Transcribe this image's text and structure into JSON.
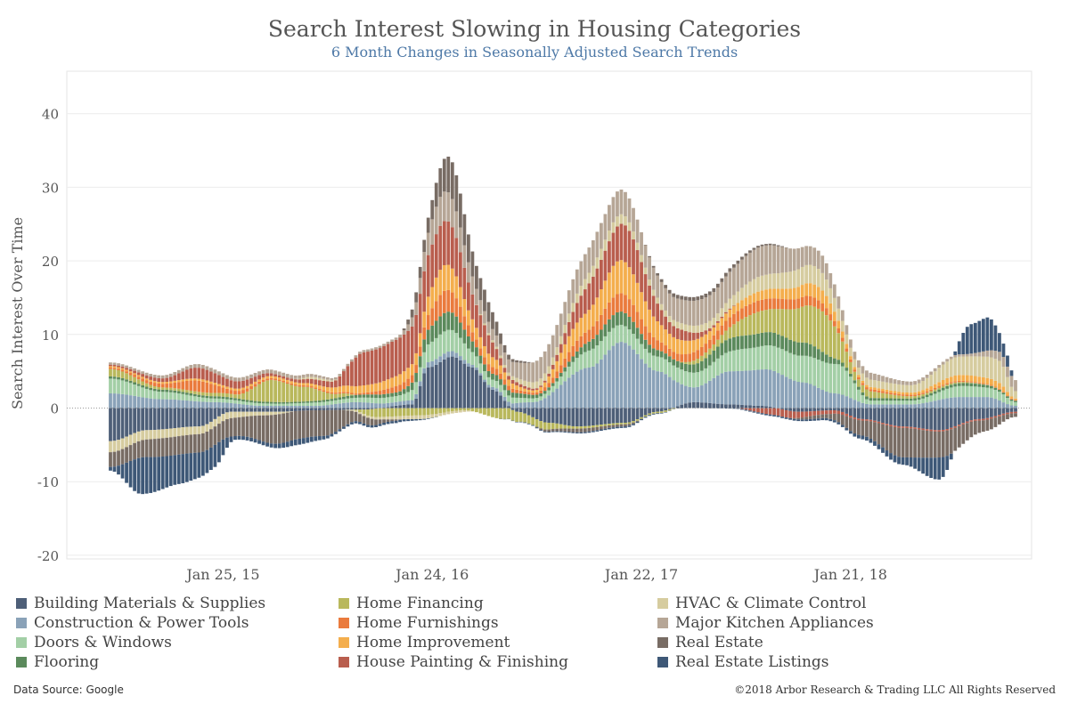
{
  "header": {
    "title": "Search Interest Slowing in Housing Categories",
    "subtitle": "6 Month Changes in Seasonally Adjusted Search Trends"
  },
  "footer": {
    "source": "Data Source: Google",
    "copyright": "©2018 Arbor Research & Trading LLC  All Rights Reserved"
  },
  "chart_data": {
    "type": "bar",
    "stacked": true,
    "title": "Search Interest Slowing in Housing Categories",
    "subtitle": "6 Month Changes in Seasonally Adjusted Search Trends",
    "ylabel": "Search Interest Over Time",
    "xlabel": "",
    "ylim": [
      -20,
      45
    ],
    "yticks": [
      -20,
      -10,
      0,
      10,
      20,
      30,
      40
    ],
    "grid": true,
    "legend_position": "bottom",
    "x_tick_labels": [
      "Jan 25, 15",
      "Jan 24, 16",
      "Jan 22, 17",
      "Jan 21, 18"
    ],
    "x_start": "2014-07-13",
    "x_end": "2018-11-04",
    "frequency": "weekly",
    "series": [
      {
        "name": "Building Materials & Supplies",
        "color": "#4e5f78",
        "points": [
          [
            "2014-07-13",
            -4.5
          ],
          [
            "2014-09-14",
            -3.0
          ],
          [
            "2014-12-14",
            -2.5
          ],
          [
            "2015-02-08",
            -0.5
          ],
          [
            "2015-03-22",
            -0.5
          ],
          [
            "2015-05-03",
            -0.5
          ],
          [
            "2015-07-05",
            -0.3
          ],
          [
            "2015-09-27",
            -0.2
          ],
          [
            "2015-12-20",
            0.5
          ],
          [
            "2016-01-17",
            5.5
          ],
          [
            "2016-02-28",
            7.0
          ],
          [
            "2016-04-03",
            5.5
          ],
          [
            "2016-05-08",
            2.5
          ],
          [
            "2016-06-19",
            -0.5
          ],
          [
            "2016-08-14",
            -2.0
          ],
          [
            "2016-10-02",
            -2.5
          ],
          [
            "2016-12-25",
            -2.0
          ],
          [
            "2017-02-19",
            -0.5
          ],
          [
            "2017-04-23",
            0.8
          ],
          [
            "2017-06-25",
            0.5
          ],
          [
            "2017-08-20",
            0.3
          ],
          [
            "2017-10-22",
            -0.5
          ],
          [
            "2017-12-24",
            -0.3
          ],
          [
            "2018-02-11",
            -1.5
          ],
          [
            "2018-04-22",
            -2.5
          ],
          [
            "2018-06-24",
            -3.0
          ],
          [
            "2018-09-02",
            -1.5
          ],
          [
            "2018-11-04",
            -0.5
          ]
        ]
      },
      {
        "name": "Construction & Power Tools",
        "color": "#8aa2b8",
        "points": [
          [
            "2014-07-13",
            2.0
          ],
          [
            "2014-10-12",
            1.2
          ],
          [
            "2015-01-11",
            0.8
          ],
          [
            "2015-04-05",
            0.3
          ],
          [
            "2015-07-05",
            0.3
          ],
          [
            "2015-09-13",
            0.8
          ],
          [
            "2015-11-22",
            0.5
          ],
          [
            "2016-02-14",
            0.8
          ],
          [
            "2016-04-17",
            0.3
          ],
          [
            "2016-07-17",
            0.8
          ],
          [
            "2016-10-23",
            5.5
          ],
          [
            "2016-12-18",
            9.0
          ],
          [
            "2017-02-19",
            5.0
          ],
          [
            "2017-04-23",
            2.0
          ],
          [
            "2017-06-25",
            4.5
          ],
          [
            "2017-09-03",
            5.0
          ],
          [
            "2017-10-29",
            3.5
          ],
          [
            "2017-12-24",
            2.0
          ],
          [
            "2018-02-25",
            0.5
          ],
          [
            "2018-05-06",
            0.5
          ],
          [
            "2018-07-29",
            1.5
          ],
          [
            "2018-09-16",
            1.5
          ],
          [
            "2018-11-04",
            0.3
          ]
        ]
      },
      {
        "name": "Doors & Windows",
        "color": "#a3cfa6",
        "points": [
          [
            "2014-07-13",
            2.0
          ],
          [
            "2014-10-12",
            1.0
          ],
          [
            "2015-01-11",
            0.5
          ],
          [
            "2015-05-03",
            0.3
          ],
          [
            "2015-08-02",
            0.5
          ],
          [
            "2015-11-22",
            0.8
          ],
          [
            "2016-02-14",
            3.0
          ],
          [
            "2016-05-08",
            1.0
          ],
          [
            "2016-07-24",
            0.5
          ],
          [
            "2016-11-13",
            2.5
          ],
          [
            "2017-02-05",
            2.0
          ],
          [
            "2017-05-07",
            2.0
          ],
          [
            "2017-07-23",
            3.0
          ],
          [
            "2017-10-01",
            3.5
          ],
          [
            "2017-12-31",
            4.0
          ],
          [
            "2018-02-25",
            0.5
          ],
          [
            "2018-05-06",
            0.5
          ],
          [
            "2018-08-05",
            1.5
          ],
          [
            "2018-10-07",
            1.2
          ],
          [
            "2018-11-04",
            0.5
          ]
        ]
      },
      {
        "name": "Flooring",
        "color": "#5b8a5c",
        "points": [
          [
            "2014-07-13",
            0.3
          ],
          [
            "2015-01-11",
            0.3
          ],
          [
            "2015-06-07",
            0.2
          ],
          [
            "2015-11-22",
            0.5
          ],
          [
            "2016-02-14",
            2.5
          ],
          [
            "2016-05-08",
            0.8
          ],
          [
            "2016-08-14",
            0.4
          ],
          [
            "2016-12-18",
            1.8
          ],
          [
            "2017-03-05",
            0.8
          ],
          [
            "2017-07-09",
            1.8
          ],
          [
            "2017-10-29",
            1.8
          ],
          [
            "2018-01-21",
            0.4
          ],
          [
            "2018-05-06",
            0.3
          ],
          [
            "2018-08-19",
            0.4
          ],
          [
            "2018-11-04",
            0.2
          ]
        ]
      },
      {
        "name": "Home Financing",
        "color": "#b9b85c",
        "points": [
          [
            "2014-07-13",
            1.0
          ],
          [
            "2014-10-12",
            0.3
          ],
          [
            "2015-02-15",
            0.5
          ],
          [
            "2015-04-19",
            3.0
          ],
          [
            "2015-06-14",
            2.0
          ],
          [
            "2015-08-16",
            0.5
          ],
          [
            "2015-10-25",
            -1.2
          ],
          [
            "2016-01-03",
            -1.0
          ],
          [
            "2016-03-20",
            -0.3
          ],
          [
            "2016-05-29",
            -1.5
          ],
          [
            "2016-07-31",
            -1.0
          ],
          [
            "2016-10-02",
            -0.3
          ],
          [
            "2016-12-25",
            -0.2
          ],
          [
            "2017-03-05",
            -0.2
          ],
          [
            "2017-05-21",
            0.8
          ],
          [
            "2017-08-20",
            3.0
          ],
          [
            "2017-12-03",
            5.5
          ],
          [
            "2018-02-04",
            1.0
          ],
          [
            "2018-05-06",
            0.3
          ],
          [
            "2018-11-04",
            0.0
          ]
        ]
      },
      {
        "name": "Home Furnishings",
        "color": "#ea7b3d",
        "points": [
          [
            "2014-07-13",
            0.2
          ],
          [
            "2014-10-12",
            0.5
          ],
          [
            "2014-12-14",
            1.5
          ],
          [
            "2015-02-15",
            0.5
          ],
          [
            "2015-05-03",
            0.2
          ],
          [
            "2015-09-13",
            0.2
          ],
          [
            "2015-12-20",
            1.0
          ],
          [
            "2016-02-14",
            3.0
          ],
          [
            "2016-04-17",
            1.0
          ],
          [
            "2016-07-17",
            0.3
          ],
          [
            "2016-10-09",
            1.5
          ],
          [
            "2016-12-18",
            2.5
          ],
          [
            "2017-03-19",
            1.0
          ],
          [
            "2017-05-07",
            1.2
          ],
          [
            "2017-08-06",
            1.5
          ],
          [
            "2017-11-05",
            1.3
          ],
          [
            "2018-02-04",
            0.3
          ],
          [
            "2018-05-06",
            0.2
          ],
          [
            "2018-11-04",
            0.1
          ]
        ]
      },
      {
        "name": "Home Improvement",
        "color": "#f4ae4d",
        "points": [
          [
            "2014-07-13",
            0.2
          ],
          [
            "2015-02-15",
            0.3
          ],
          [
            "2015-06-07",
            0.3
          ],
          [
            "2015-09-27",
            1.0
          ],
          [
            "2015-12-20",
            1.5
          ],
          [
            "2016-02-14",
            3.5
          ],
          [
            "2016-04-17",
            1.5
          ],
          [
            "2016-07-17",
            0.3
          ],
          [
            "2016-10-09",
            2.5
          ],
          [
            "2016-12-18",
            4.5
          ],
          [
            "2017-03-19",
            2.0
          ],
          [
            "2017-06-11",
            1.0
          ],
          [
            "2017-09-03",
            1.3
          ],
          [
            "2017-11-26",
            1.8
          ],
          [
            "2018-02-04",
            0.3
          ],
          [
            "2018-05-06",
            0.3
          ],
          [
            "2018-08-05",
            0.8
          ],
          [
            "2018-10-07",
            0.8
          ],
          [
            "2018-11-04",
            0.2
          ]
        ]
      },
      {
        "name": "House Painting & Finishing",
        "color": "#b95e4e",
        "points": [
          [
            "2014-07-13",
            0.2
          ],
          [
            "2014-10-12",
            0.5
          ],
          [
            "2014-12-14",
            1.5
          ],
          [
            "2015-02-15",
            1.0
          ],
          [
            "2015-05-03",
            0.3
          ],
          [
            "2015-08-02",
            0.8
          ],
          [
            "2015-09-27",
            4.5
          ],
          [
            "2015-12-06",
            5.0
          ],
          [
            "2016-02-14",
            6.0
          ],
          [
            "2016-04-17",
            3.0
          ],
          [
            "2016-06-05",
            0.5
          ],
          [
            "2016-07-31",
            0.2
          ],
          [
            "2016-11-13",
            4.0
          ],
          [
            "2016-12-25",
            5.0
          ],
          [
            "2017-03-19",
            1.5
          ],
          [
            "2017-06-11",
            0.2
          ],
          [
            "2017-09-24",
            -1.0
          ],
          [
            "2017-12-10",
            -0.5
          ],
          [
            "2018-02-11",
            -0.2
          ],
          [
            "2018-11-04",
            -0.2
          ]
        ]
      },
      {
        "name": "HVAC & Climate Control",
        "color": "#d6cc9f",
        "points": [
          [
            "2014-07-13",
            -1.5
          ],
          [
            "2014-10-12",
            -1.2
          ],
          [
            "2015-01-11",
            -1.0
          ],
          [
            "2015-04-05",
            -0.5
          ],
          [
            "2015-07-05",
            0.3
          ],
          [
            "2015-10-04",
            -0.3
          ],
          [
            "2016-01-03",
            -0.5
          ],
          [
            "2016-03-06",
            -0.3
          ],
          [
            "2016-05-08",
            0.3
          ],
          [
            "2016-08-14",
            1.0
          ],
          [
            "2016-11-13",
            1.5
          ],
          [
            "2017-02-19",
            0.8
          ],
          [
            "2017-05-21",
            1.0
          ],
          [
            "2017-08-20",
            2.0
          ],
          [
            "2017-11-19",
            2.5
          ],
          [
            "2018-02-04",
            1.0
          ],
          [
            "2018-05-06",
            1.0
          ],
          [
            "2018-07-29",
            2.5
          ],
          [
            "2018-10-07",
            3.0
          ],
          [
            "2018-11-04",
            1.0
          ]
        ]
      },
      {
        "name": "Major Kitchen Appliances",
        "color": "#b6a696",
        "points": [
          [
            "2014-07-13",
            0.3
          ],
          [
            "2015-01-11",
            0.5
          ],
          [
            "2015-05-03",
            0.5
          ],
          [
            "2015-08-16",
            0.3
          ],
          [
            "2015-11-22",
            0.3
          ],
          [
            "2016-02-14",
            4.0
          ],
          [
            "2016-05-08",
            1.5
          ],
          [
            "2016-08-14",
            3.0
          ],
          [
            "2016-11-13",
            3.5
          ],
          [
            "2017-02-19",
            3.0
          ],
          [
            "2017-05-21",
            3.5
          ],
          [
            "2017-08-20",
            4.0
          ],
          [
            "2017-11-19",
            2.5
          ],
          [
            "2018-02-04",
            1.0
          ],
          [
            "2018-05-06",
            0.5
          ],
          [
            "2018-08-05",
            0.3
          ],
          [
            "2018-11-04",
            1.5
          ]
        ]
      },
      {
        "name": "Real Estate",
        "color": "#786c64",
        "points": [
          [
            "2014-07-13",
            -2.0
          ],
          [
            "2014-10-12",
            -2.5
          ],
          [
            "2014-12-14",
            -2.5
          ],
          [
            "2015-02-15",
            -2.5
          ],
          [
            "2015-05-03",
            -4.0
          ],
          [
            "2015-07-19",
            -3.5
          ],
          [
            "2015-09-27",
            -1.0
          ],
          [
            "2015-11-22",
            -0.2
          ],
          [
            "2016-01-03",
            1.5
          ],
          [
            "2016-02-28",
            5.0
          ],
          [
            "2016-04-17",
            3.0
          ],
          [
            "2016-06-19",
            0.3
          ],
          [
            "2016-08-14",
            -0.3
          ],
          [
            "2016-10-09",
            -0.5
          ],
          [
            "2016-12-18",
            -0.3
          ],
          [
            "2017-03-19",
            0.5
          ],
          [
            "2017-06-11",
            0.5
          ],
          [
            "2017-09-03",
            0.2
          ],
          [
            "2017-12-03",
            -0.5
          ],
          [
            "2018-02-04",
            -2.0
          ],
          [
            "2018-04-22",
            -4.0
          ],
          [
            "2018-07-01",
            -3.5
          ],
          [
            "2018-09-16",
            -1.5
          ],
          [
            "2018-11-04",
            -0.5
          ]
        ]
      },
      {
        "name": "Real Estate Listings",
        "color": "#3e5877",
        "points": [
          [
            "2014-07-13",
            -0.5
          ],
          [
            "2014-09-07",
            -5.0
          ],
          [
            "2014-11-09",
            -4.0
          ],
          [
            "2015-01-11",
            -3.0
          ],
          [
            "2015-02-15",
            -0.5
          ],
          [
            "2015-04-05",
            -0.5
          ],
          [
            "2015-06-07",
            -0.8
          ],
          [
            "2015-08-16",
            -0.3
          ],
          [
            "2015-11-22",
            -0.3
          ],
          [
            "2016-02-14",
            0.0
          ],
          [
            "2016-05-08",
            0.0
          ],
          [
            "2016-07-17",
            -0.1
          ],
          [
            "2016-12-18",
            -0.2
          ],
          [
            "2017-04-23",
            0.0
          ],
          [
            "2017-09-17",
            -0.2
          ],
          [
            "2018-01-07",
            -0.3
          ],
          [
            "2018-02-11",
            -0.5
          ],
          [
            "2018-04-22",
            -1.0
          ],
          [
            "2018-06-24",
            -3.0
          ],
          [
            "2018-08-19",
            4.0
          ],
          [
            "2018-09-16",
            4.5
          ],
          [
            "2018-10-21",
            1.5
          ],
          [
            "2018-11-04",
            0.0
          ]
        ]
      }
    ]
  }
}
